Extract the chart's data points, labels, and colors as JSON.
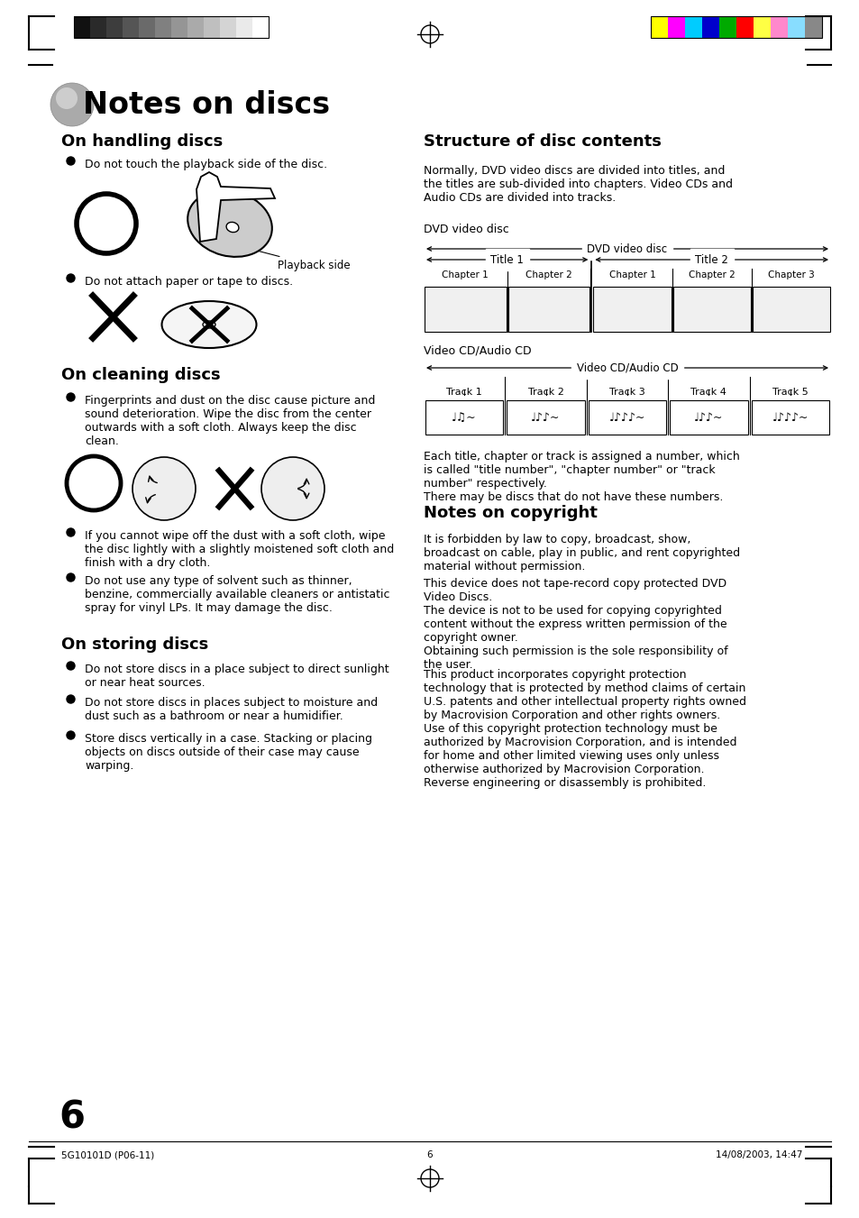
{
  "page_bg": "#ffffff",
  "title_text": "Notes on discs",
  "section1_heading": "On handling discs",
  "section2_heading": "On cleaning discs",
  "section3_heading": "On storing discs",
  "section4_heading": "Structure of disc contents",
  "section5_heading": "Notes on copyright",
  "handling_bullet1": "Do not touch the playback side of the disc.",
  "handling_bullet2": "Do not attach paper or tape to discs.",
  "playback_label": "Playback side",
  "cleaning_bullet1": "Fingerprints and dust on the disc cause picture and\nsound deterioration. Wipe the disc from the center\noutwards with a soft cloth. Always keep the disc\nclean.",
  "cleaning_bullet2": "If you cannot wipe off the dust with a soft cloth, wipe\nthe disc lightly with a slightly moistened soft cloth and\nfinish with a dry cloth.",
  "cleaning_bullet3": "Do not use any type of solvent such as thinner,\nbenzine, commercially available cleaners or antistatic\nspray for vinyl LPs. It may damage the disc.",
  "storing_bullet1": "Do not store discs in a place subject to direct sunlight\nor near heat sources.",
  "storing_bullet2": "Do not store discs in places subject to moisture and\ndust such as a bathroom or near a humidifier.",
  "storing_bullet3": "Store discs vertically in a case. Stacking or placing\nobjects on discs outside of their case may cause\nwarping.",
  "structure_intro": "Normally, DVD video discs are divided into titles, and\nthe titles are sub-divided into chapters. Video CDs and\nAudio CDs are divided into tracks.",
  "dvd_disc_label": "DVD video disc",
  "dvd_title1": "Title 1",
  "dvd_title2": "Title 2",
  "dvd_chapters": [
    "Chapter 1",
    "Chapter 2",
    "Chapter 1",
    "Chapter 2",
    "Chapter 3"
  ],
  "vcd_label_text": "Video CD/Audio CD",
  "vcd_tracks": [
    "Track 1",
    "Track 2",
    "Track 3",
    "Track 4",
    "Track 5"
  ],
  "structure_note": "Each title, chapter or track is assigned a number, which\nis called \"title number\", \"chapter number\" or \"track\nnumber\" respectively.\nThere may be discs that do not have these numbers.",
  "copyright_heading": "Notes on copyright",
  "copyright_text1": "It is forbidden by law to copy, broadcast, show,\nbroadcast on cable, play in public, and rent copyrighted\nmaterial without permission.",
  "copyright_text2": "This device does not tape-record copy protected DVD\nVideo Discs.\nThe device is not to be used for copying copyrighted\ncontent without the express written permission of the\ncopyright owner.\nObtaining such permission is the sole responsibility of\nthe user.",
  "copyright_text3": "This product incorporates copyright protection\ntechnology that is protected by method claims of certain\nU.S. patents and other intellectual property rights owned\nby Macrovision Corporation and other rights owners.\nUse of this copyright protection technology must be\nauthorized by Macrovision Corporation, and is intended\nfor home and other limited viewing uses only unless\notherwise authorized by Macrovision Corporation.\nReverse engineering or disassembly is prohibited.",
  "page_number": "6",
  "footer_left": "5G10101D (P06-11)",
  "footer_center": "6",
  "footer_right": "14/08/2003, 14:47",
  "gray_bars": [
    "#111111",
    "#2a2a2a",
    "#3d3d3d",
    "#555555",
    "#6a6a6a",
    "#808080",
    "#959595",
    "#aaaaaa",
    "#bfbfbf",
    "#d4d4d4",
    "#eaeaea",
    "#ffffff"
  ],
  "color_bars": [
    "#ffff00",
    "#ff00ff",
    "#00ccff",
    "#0000cc",
    "#00aa00",
    "#ff0000",
    "#ffff44",
    "#ff88cc",
    "#88ddff",
    "#888888"
  ]
}
